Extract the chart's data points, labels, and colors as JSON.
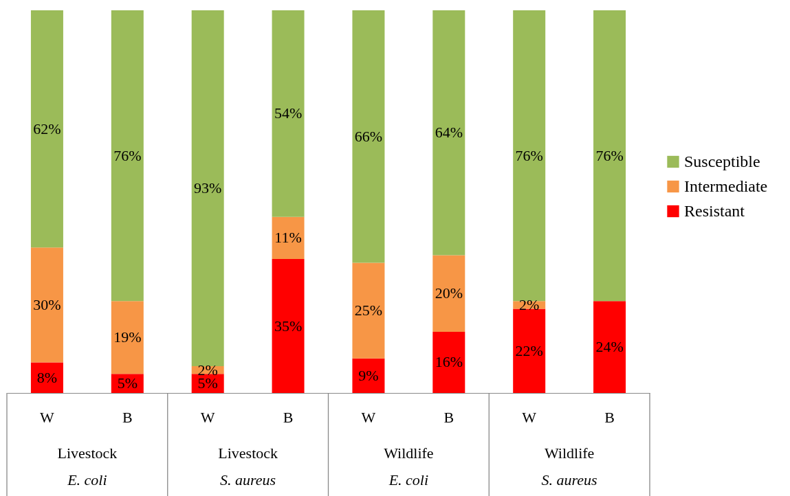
{
  "chart_data": {
    "type": "bar",
    "stacked": true,
    "legend": "right",
    "tick_labels": "x",
    "categories": [
      "W",
      "B",
      "W",
      "B",
      "W",
      "B",
      "W",
      "B"
    ],
    "series": [
      {
        "name": "Resistant",
        "color": "#ff0000",
        "values": [
          8,
          5,
          5,
          35,
          9,
          16,
          22,
          24
        ],
        "value_labels": [
          "8%",
          "5%",
          "5%",
          "35%",
          "9%",
          "16%",
          "22%",
          "24%"
        ]
      },
      {
        "name": "Intermediate",
        "color": "#f79646",
        "values": [
          30,
          19,
          2,
          11,
          25,
          20,
          2,
          null
        ],
        "value_labels": [
          "30%",
          "19%",
          "2%",
          "11%",
          "25%",
          "20%",
          "2%",
          null
        ]
      },
      {
        "name": "Susceptible",
        "color": "#9bbb59",
        "values": [
          62,
          76,
          93,
          54,
          66,
          64,
          76,
          76
        ],
        "value_labels": [
          "62%",
          "76%",
          "93%",
          "54%",
          "66%",
          "64%",
          "76%",
          "76%"
        ]
      }
    ],
    "annotations": [
      "Livestock",
      "E. coli",
      "Livestock",
      "S. aureus",
      "Wildlife",
      "E. coli",
      "Wildlife",
      "S. aureus"
    ]
  }
}
